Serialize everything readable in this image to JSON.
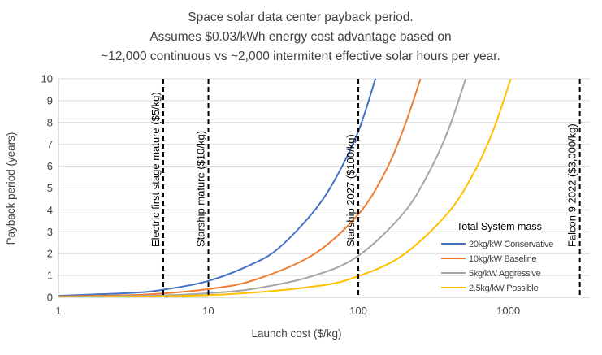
{
  "chart_data": {
    "type": "line",
    "title_lines": [
      "Space solar data center payback period.",
      "Assumes $0.03/kWh energy cost advantage based on",
      "~12,000 continuous vs ~2,000 intermitent effective solar hours per year."
    ],
    "xlabel": "Launch cost ($/kg)",
    "ylabel": "Payback period (years)",
    "x_scale": "log",
    "xlim": [
      1,
      3500
    ],
    "ylim": [
      0,
      10
    ],
    "x_ticks": [
      1,
      10,
      100,
      1000
    ],
    "x_tick_labels": [
      "1",
      "10",
      "100",
      "1000"
    ],
    "y_ticks": [
      0,
      1,
      2,
      3,
      4,
      5,
      6,
      7,
      8,
      9,
      10
    ],
    "y_tick_labels": [
      "0",
      "1",
      "2",
      "3",
      "4",
      "5",
      "6",
      "7",
      "8",
      "9",
      "10"
    ],
    "grid": "horizontal",
    "legend_title": "Total System mass",
    "legend_position": "bottom-right",
    "series": [
      {
        "name": "20kg/kW Conservative",
        "color": "#4472C4",
        "mass_kg_per_kw": 20,
        "points": [
          [
            1,
            0.07
          ],
          [
            3,
            0.2
          ],
          [
            5,
            0.35
          ],
          [
            10,
            0.75
          ],
          [
            20,
            1.55
          ],
          [
            30,
            2.3
          ],
          [
            50,
            3.9
          ],
          [
            70,
            5.4
          ],
          [
            100,
            7.6
          ],
          [
            130,
            10
          ]
        ]
      },
      {
        "name": "10kg/kW Baseline",
        "color": "#ED7D31",
        "mass_kg_per_kw": 10,
        "points": [
          [
            1,
            0.04
          ],
          [
            3,
            0.1
          ],
          [
            5,
            0.18
          ],
          [
            10,
            0.38
          ],
          [
            20,
            0.78
          ],
          [
            50,
            1.95
          ],
          [
            100,
            3.8
          ],
          [
            150,
            5.7
          ],
          [
            200,
            7.7
          ],
          [
            260,
            10
          ]
        ]
      },
      {
        "name": "5kg/kW Aggressive",
        "color": "#A5A5A5",
        "mass_kg_per_kw": 5,
        "points": [
          [
            1,
            0.02
          ],
          [
            5,
            0.09
          ],
          [
            10,
            0.19
          ],
          [
            20,
            0.39
          ],
          [
            50,
            0.98
          ],
          [
            100,
            1.9
          ],
          [
            200,
            3.85
          ],
          [
            300,
            5.8
          ],
          [
            400,
            7.7
          ],
          [
            520,
            10
          ]
        ]
      },
      {
        "name": "2.5kg/kW Possible",
        "color": "#FFC000",
        "mass_kg_per_kw": 2.5,
        "points": [
          [
            1,
            0.01
          ],
          [
            10,
            0.1
          ],
          [
            50,
            0.49
          ],
          [
            100,
            0.97
          ],
          [
            200,
            1.95
          ],
          [
            400,
            3.9
          ],
          [
            600,
            5.8
          ],
          [
            800,
            7.7
          ],
          [
            1040,
            10
          ]
        ]
      }
    ],
    "reference_lines": [
      {
        "x": 5,
        "label": "Electric first stage mature ($5/kg)"
      },
      {
        "x": 10,
        "label": "Starship mature ($10/kg)"
      },
      {
        "x": 100,
        "label": "Starship 2027 ($100/kg)"
      },
      {
        "x": 3000,
        "label": "Falcon 9 2022 ($3,000/kg)"
      }
    ]
  }
}
